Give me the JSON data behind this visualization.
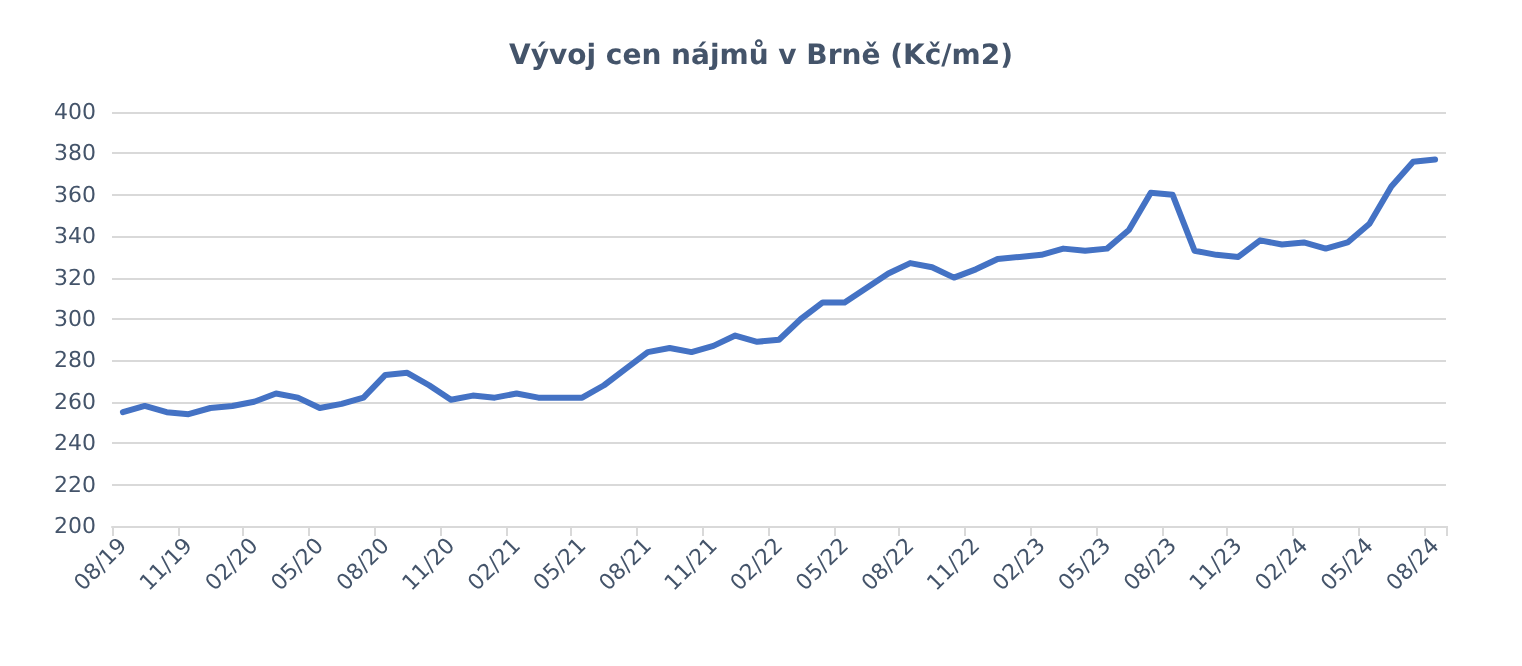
{
  "chart_data": {
    "type": "line",
    "title": "Vývoj cen nájmů v Brně (Kč/m2)",
    "categories": [
      "08/19",
      null,
      null,
      "11/19",
      null,
      null,
      "02/20",
      null,
      null,
      "05/20",
      null,
      null,
      "08/20",
      null,
      null,
      "11/20",
      null,
      null,
      "02/21",
      null,
      null,
      "05/21",
      null,
      null,
      "08/21",
      null,
      null,
      "11/21",
      null,
      null,
      "02/22",
      null,
      null,
      "05/22",
      null,
      null,
      "08/22",
      null,
      null,
      "11/22",
      null,
      null,
      "02/23",
      null,
      null,
      "05/23",
      null,
      null,
      "08/23",
      null,
      null,
      "11/23",
      null,
      null,
      "02/24",
      null,
      null,
      "05/24",
      null,
      null,
      "08/24"
    ],
    "series": [
      {
        "color": "#4472c4",
        "values": [
          255,
          258,
          255,
          254,
          257,
          258,
          260,
          264,
          262,
          257,
          259,
          262,
          273,
          274,
          268,
          261,
          263,
          262,
          264,
          262,
          262,
          262,
          268,
          276,
          284,
          286,
          284,
          287,
          292,
          289,
          290,
          300,
          308,
          308,
          315,
          322,
          327,
          325,
          320,
          324,
          329,
          330,
          331,
          334,
          333,
          334,
          343,
          361,
          360,
          333,
          331,
          330,
          338,
          336,
          337,
          334,
          337,
          346,
          364,
          376,
          377
        ]
      }
    ],
    "ylim": [
      200,
      400
    ],
    "yticks": [
      200,
      220,
      240,
      260,
      280,
      300,
      320,
      340,
      360,
      380,
      400
    ],
    "grid": "y",
    "marker": "none",
    "line_style": "solid"
  }
}
